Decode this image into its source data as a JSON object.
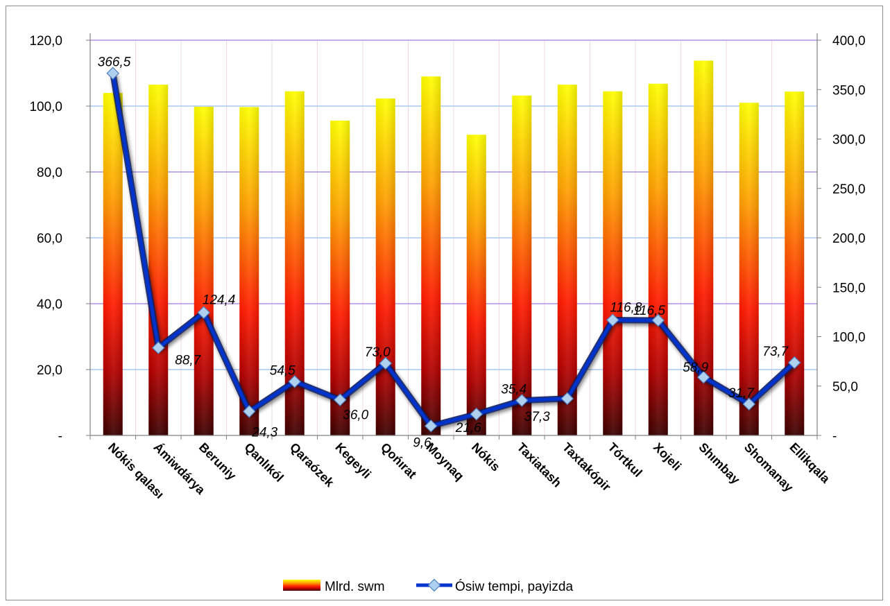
{
  "chart_data": {
    "type": "bar+line",
    "categories": [
      "Nókis qalası",
      "Ámiwdárya",
      "Beruniy",
      "Qanlıkól",
      "Qaraózek",
      "Kegeyli",
      "Qońırat",
      "Moynaq",
      "Nókis",
      "Taxiatash",
      "Taxtakópir",
      "Tórtkul",
      "Xojeli",
      "Shımbay",
      "Shomanay",
      "Ellikqala"
    ],
    "series": [
      {
        "name": "Mlrd. swm",
        "type": "bar",
        "axis": "left",
        "values": [
          104.0,
          106.5,
          99.8,
          99.7,
          104.5,
          95.6,
          102.3,
          109.0,
          91.3,
          103.2,
          106.5,
          104.5,
          106.8,
          113.8,
          101.0,
          104.4
        ]
      },
      {
        "name": "Ósiw tempi, payizda",
        "type": "line",
        "axis": "right",
        "values": [
          366.5,
          88.7,
          124.4,
          24.3,
          54.5,
          36.0,
          73.0,
          9.6,
          21.6,
          35.4,
          37.3,
          116.8,
          116.5,
          58.9,
          31.7,
          73.7
        ],
        "labels": [
          "366,5",
          "88,7",
          "124,4",
          "24,3",
          "54,5",
          "36,0",
          "73,0",
          "9,6",
          "21,6",
          "35,4",
          "37,3",
          "116,8",
          "116,5",
          "58,9",
          "31,7",
          "73,7"
        ]
      }
    ],
    "y_left": {
      "range": [
        0,
        120
      ],
      "ticks": [
        "-",
        "20,0",
        "40,0",
        "60,0",
        "80,0",
        "100,0",
        "120,0"
      ]
    },
    "y_right": {
      "range": [
        0,
        400
      ],
      "ticks": [
        "-",
        "50,0",
        "100,0",
        "150,0",
        "200,0",
        "250,0",
        "300,0",
        "350,0",
        "400,0"
      ]
    },
    "legend_position": "bottom",
    "colors": {
      "bar_top": "#ffff00",
      "bar_mid": "#ff2a00",
      "bar_bottom": "#4a0000",
      "line": "#0033cc",
      "marker_fill": "#b0d0f0",
      "grid_blue": "#a8c8f0",
      "grid_purple": "#b090e0"
    }
  }
}
